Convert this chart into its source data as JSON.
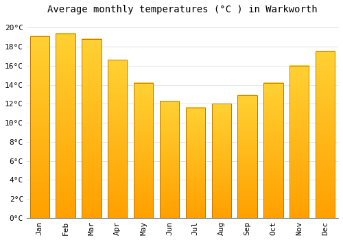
{
  "title": "Average monthly temperatures (°C ) in Warkworth",
  "months": [
    "Jan",
    "Feb",
    "Mar",
    "Apr",
    "May",
    "Jun",
    "Jul",
    "Aug",
    "Sep",
    "Oct",
    "Nov",
    "Dec"
  ],
  "values": [
    19.1,
    19.4,
    18.8,
    16.6,
    14.2,
    12.3,
    11.6,
    12.0,
    12.9,
    14.2,
    16.0,
    17.5
  ],
  "bar_color_top": "#FFB700",
  "bar_color_bottom": "#FFA000",
  "bar_edge_color": "#C07800",
  "ylim": [
    0,
    21
  ],
  "ytick_step": 2,
  "background_color": "#FFFFFF",
  "plot_bg_color": "#FFFFFF",
  "grid_color": "#DDDDDD",
  "title_fontsize": 10,
  "tick_fontsize": 8,
  "title_font": "monospace",
  "tick_font": "monospace",
  "bar_width": 0.75
}
